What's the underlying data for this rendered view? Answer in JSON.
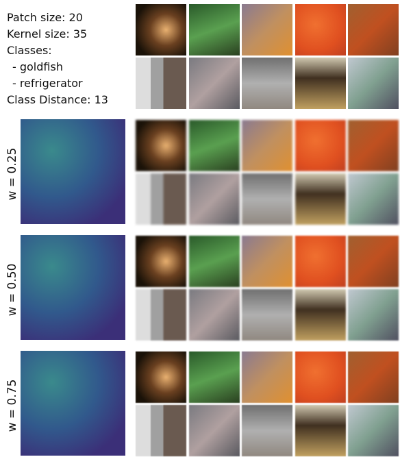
{
  "settings": {
    "lines": [
      "Patch size: 20",
      "Kernel size: 35",
      "Classes:",
      "- goldfish",
      "- refrigerator",
      "Class Distance: 13"
    ]
  },
  "row_labels": [
    "w = 0.25",
    "w = 0.50",
    "w = 0.75"
  ]
}
